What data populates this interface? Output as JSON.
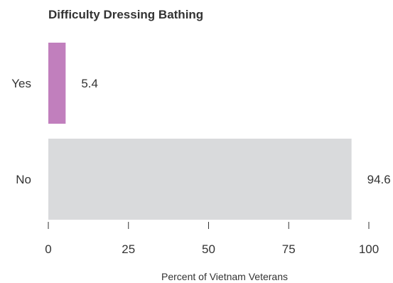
{
  "chart_data": {
    "type": "bar",
    "orientation": "horizontal",
    "title": "Difficulty Dressing Bathing",
    "xlabel": "Percent of Vietnam Veterans",
    "ylabel": "",
    "categories": [
      "Yes",
      "No"
    ],
    "values": [
      5.4,
      94.6
    ],
    "data_labels": [
      "5.4",
      "94.6"
    ],
    "colors": [
      "#c17fbd",
      "#d9dadc"
    ],
    "xlim": [
      0,
      100
    ],
    "xticks": [
      0,
      25,
      50,
      75,
      100
    ],
    "grid": false,
    "legend": "none"
  }
}
